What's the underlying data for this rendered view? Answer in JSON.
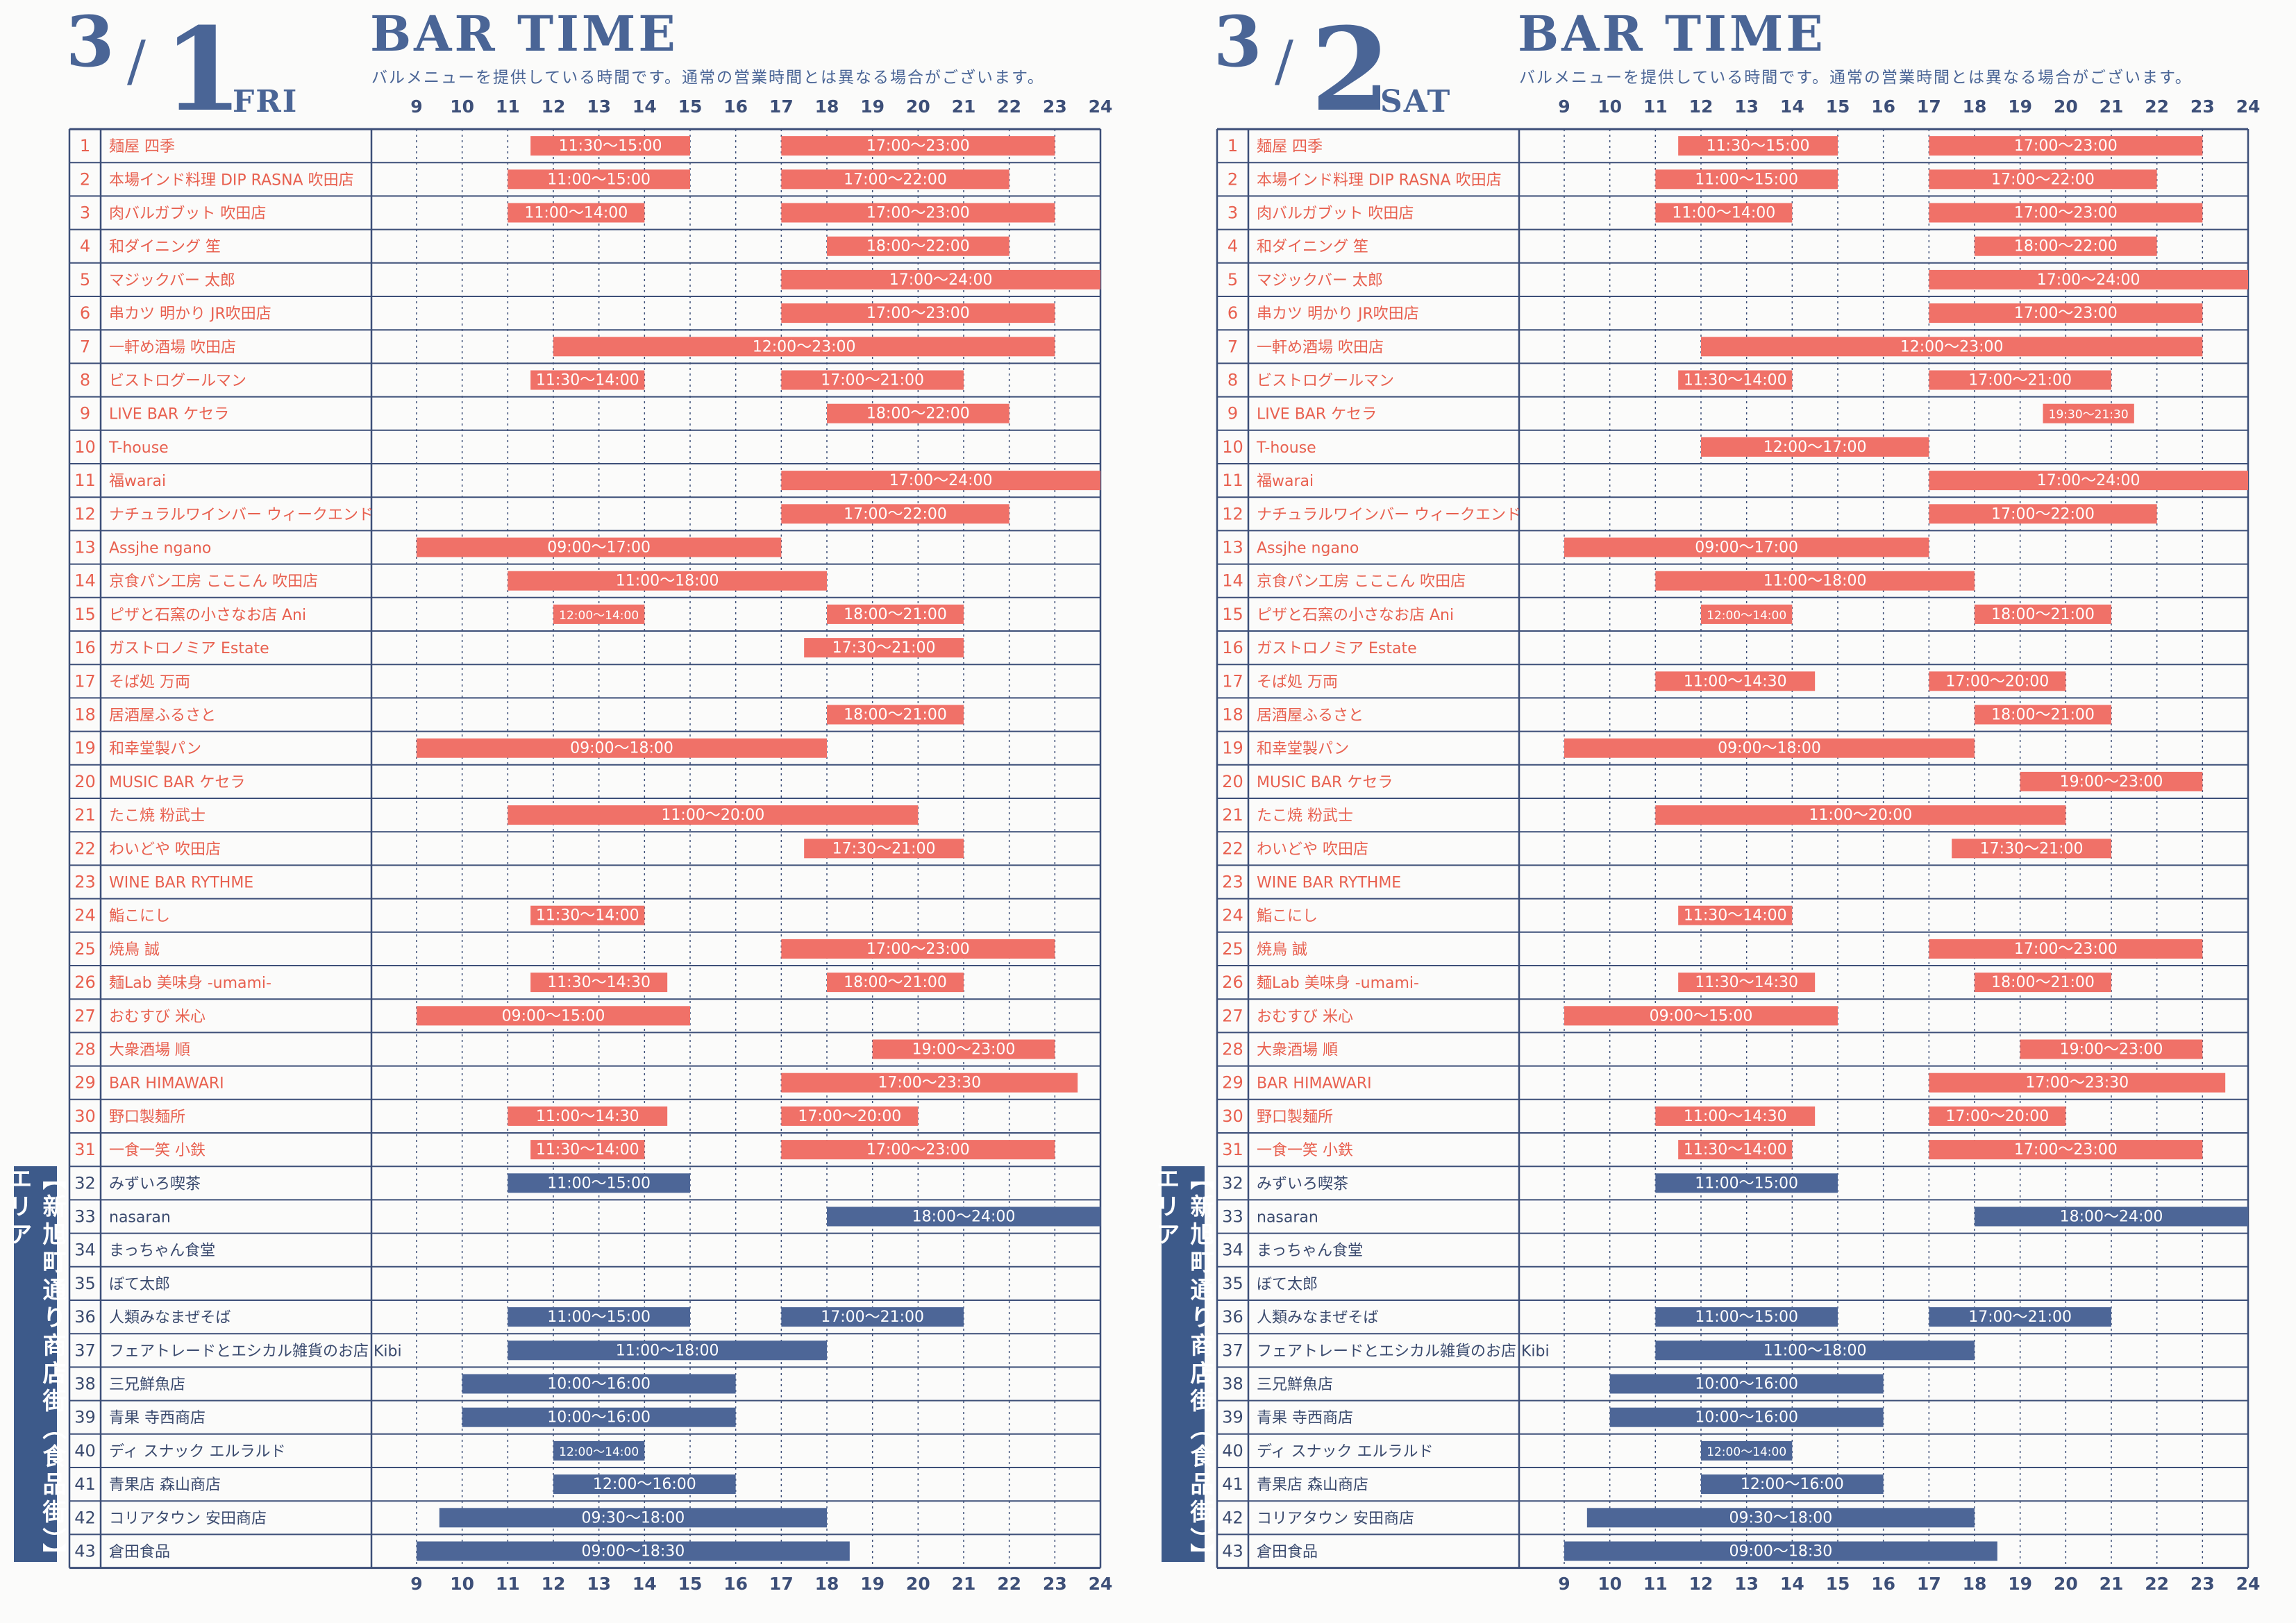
{
  "legend_title": "BAR TIME",
  "subtitle": "バルメニューを提供している時間です。通常の営業時間とは異なる場合がございます。",
  "side_tab": "【新旭町通り商店街（食品街）】エリア",
  "colors": {
    "red": "#f07168",
    "blue": "#4d6697",
    "grid": "#3d4f78"
  },
  "chart_data": {
    "type": "gantt",
    "hours": [
      "9",
      "10",
      "11",
      "12",
      "13",
      "14",
      "15",
      "16",
      "17",
      "18",
      "19",
      "20",
      "21",
      "22",
      "23",
      "24"
    ],
    "xlim": [
      9,
      24
    ],
    "rows": [
      {
        "no": "1",
        "name": "麺屋 四季"
      },
      {
        "no": "2",
        "name": "本場インド料理 DIP RASNA 吹田店"
      },
      {
        "no": "3",
        "name": "肉バルガブット 吹田店"
      },
      {
        "no": "4",
        "name": "和ダイニング 笙"
      },
      {
        "no": "5",
        "name": "マジックバー 太郎"
      },
      {
        "no": "6",
        "name": "串カツ 明かり JR吹田店"
      },
      {
        "no": "7",
        "name": "一軒め酒場 吹田店"
      },
      {
        "no": "8",
        "name": "ビストログールマン"
      },
      {
        "no": "9",
        "name": "LIVE BAR ケセラ"
      },
      {
        "no": "10",
        "name": "T-house"
      },
      {
        "no": "11",
        "name": "福warai"
      },
      {
        "no": "12",
        "name": "ナチュラルワインバー ウィークエンド"
      },
      {
        "no": "13",
        "name": "Assjhe ngano"
      },
      {
        "no": "14",
        "name": "京食パン工房 こここん 吹田店"
      },
      {
        "no": "15",
        "name": "ピザと石窯の小さなお店 Ani"
      },
      {
        "no": "16",
        "name": "ガストロノミア Estate"
      },
      {
        "no": "17",
        "name": "そば処 万両"
      },
      {
        "no": "18",
        "name": "居酒屋ふるさと"
      },
      {
        "no": "19",
        "name": "和幸堂製パン"
      },
      {
        "no": "20",
        "name": "MUSIC BAR ケセラ"
      },
      {
        "no": "21",
        "name": "たこ焼 粉武士"
      },
      {
        "no": "22",
        "name": "わいどや 吹田店"
      },
      {
        "no": "23",
        "name": "WINE BAR RYTHME"
      },
      {
        "no": "24",
        "name": "鮨こにし"
      },
      {
        "no": "25",
        "name": "焼鳥 誠"
      },
      {
        "no": "26",
        "name": "麺Lab 美味身 -umami-"
      },
      {
        "no": "27",
        "name": "おむすび 米心"
      },
      {
        "no": "28",
        "name": "大衆酒場 順"
      },
      {
        "no": "29",
        "name": "BAR HIMAWARI"
      },
      {
        "no": "30",
        "name": "野口製麺所"
      },
      {
        "no": "31",
        "name": "一食一笑 小鉄"
      },
      {
        "no": "32",
        "name": "みずいろ喫茶"
      },
      {
        "no": "33",
        "name": "nasaran"
      },
      {
        "no": "34",
        "name": "まっちゃん食堂"
      },
      {
        "no": "35",
        "name": "ぼて太郎"
      },
      {
        "no": "36",
        "name": "人類みなまぜそば"
      },
      {
        "no": "37",
        "name": "フェアトレードとエシカル雑貨のお店 Kibi"
      },
      {
        "no": "38",
        "name": "三兄鮮魚店"
      },
      {
        "no": "39",
        "name": "青果 寺西商店"
      },
      {
        "no": "40",
        "name": "ディ スナック エルラルド"
      },
      {
        "no": "41",
        "name": "青果店 森山商店"
      },
      {
        "no": "42",
        "name": "コリアタウン 安田商店"
      },
      {
        "no": "43",
        "name": "倉田食品"
      }
    ],
    "days": [
      {
        "month": "3",
        "slash": "/",
        "day": "1",
        "weekday": "FRI",
        "bars": [
          {
            "r": 1,
            "s": 11.5,
            "e": 15,
            "label": "11:30～15:00"
          },
          {
            "r": 1,
            "s": 17,
            "e": 23,
            "label": "17:00～23:00"
          },
          {
            "r": 2,
            "s": 11,
            "e": 15,
            "label": "11:00～15:00"
          },
          {
            "r": 2,
            "s": 17,
            "e": 22,
            "label": "17:00～22:00"
          },
          {
            "r": 3,
            "s": 11,
            "e": 14,
            "label": "11:00～14:00"
          },
          {
            "r": 3,
            "s": 17,
            "e": 23,
            "label": "17:00～23:00"
          },
          {
            "r": 4,
            "s": 18,
            "e": 22,
            "label": "18:00～22:00"
          },
          {
            "r": 5,
            "s": 17,
            "e": 24,
            "label": "17:00～24:00"
          },
          {
            "r": 6,
            "s": 17,
            "e": 23,
            "label": "17:00～23:00"
          },
          {
            "r": 7,
            "s": 12,
            "e": 23,
            "label": "12:00～23:00"
          },
          {
            "r": 8,
            "s": 11.5,
            "e": 14,
            "label": "11:30～14:00"
          },
          {
            "r": 8,
            "s": 17,
            "e": 21,
            "label": "17:00～21:00"
          },
          {
            "r": 9,
            "s": 18,
            "e": 22,
            "label": "18:00～22:00"
          },
          {
            "r": 11,
            "s": 17,
            "e": 24,
            "label": "17:00～24:00"
          },
          {
            "r": 12,
            "s": 17,
            "e": 22,
            "label": "17:00～22:00"
          },
          {
            "r": 13,
            "s": 9,
            "e": 17,
            "label": "09:00～17:00"
          },
          {
            "r": 14,
            "s": 11,
            "e": 18,
            "label": "11:00～18:00"
          },
          {
            "r": 15,
            "s": 12,
            "e": 14,
            "label": "12:00～14:00",
            "small": true
          },
          {
            "r": 15,
            "s": 18,
            "e": 21,
            "label": "18:00～21:00"
          },
          {
            "r": 16,
            "s": 17.5,
            "e": 21,
            "label": "17:30～21:00"
          },
          {
            "r": 18,
            "s": 18,
            "e": 21,
            "label": "18:00～21:00"
          },
          {
            "r": 19,
            "s": 9,
            "e": 18,
            "label": "09:00～18:00"
          },
          {
            "r": 21,
            "s": 11,
            "e": 20,
            "label": "11:00～20:00"
          },
          {
            "r": 22,
            "s": 17.5,
            "e": 21,
            "label": "17:30～21:00"
          },
          {
            "r": 24,
            "s": 11.5,
            "e": 14,
            "label": "11:30～14:00"
          },
          {
            "r": 25,
            "s": 17,
            "e": 23,
            "label": "17:00～23:00"
          },
          {
            "r": 26,
            "s": 11.5,
            "e": 14.5,
            "label": "11:30～14:30"
          },
          {
            "r": 26,
            "s": 18,
            "e": 21,
            "label": "18:00～21:00"
          },
          {
            "r": 27,
            "s": 9,
            "e": 15,
            "label": "09:00～15:00"
          },
          {
            "r": 28,
            "s": 19,
            "e": 23,
            "label": "19:00～23:00"
          },
          {
            "r": 29,
            "s": 17,
            "e": 23.5,
            "label": "17:00～23:30"
          },
          {
            "r": 30,
            "s": 11,
            "e": 14.5,
            "label": "11:00～14:30"
          },
          {
            "r": 30,
            "s": 17,
            "e": 20,
            "label": "17:00～20:00"
          },
          {
            "r": 31,
            "s": 11.5,
            "e": 14,
            "label": "11:30～14:00"
          },
          {
            "r": 31,
            "s": 17,
            "e": 23,
            "label": "17:00～23:00"
          },
          {
            "r": 32,
            "s": 11,
            "e": 15,
            "label": "11:00～15:00"
          },
          {
            "r": 33,
            "s": 18,
            "e": 24,
            "label": "18:00～24:00"
          },
          {
            "r": 36,
            "s": 11,
            "e": 15,
            "label": "11:00～15:00"
          },
          {
            "r": 36,
            "s": 17,
            "e": 21,
            "label": "17:00～21:00"
          },
          {
            "r": 37,
            "s": 11,
            "e": 18,
            "label": "11:00～18:00"
          },
          {
            "r": 38,
            "s": 10,
            "e": 16,
            "label": "10:00～16:00"
          },
          {
            "r": 39,
            "s": 10,
            "e": 16,
            "label": "10:00～16:00"
          },
          {
            "r": 40,
            "s": 12,
            "e": 14,
            "label": "12:00～14:00",
            "small": true
          },
          {
            "r": 41,
            "s": 12,
            "e": 16,
            "label": "12:00～16:00"
          },
          {
            "r": 42,
            "s": 9.5,
            "e": 18,
            "label": "09:30～18:00"
          },
          {
            "r": 43,
            "s": 9,
            "e": 18.5,
            "label": "09:00～18:30"
          }
        ]
      },
      {
        "month": "3",
        "slash": "/",
        "day": "2",
        "weekday": "SAT",
        "bars": [
          {
            "r": 1,
            "s": 11.5,
            "e": 15,
            "label": "11:30～15:00"
          },
          {
            "r": 1,
            "s": 17,
            "e": 23,
            "label": "17:00～23:00"
          },
          {
            "r": 2,
            "s": 11,
            "e": 15,
            "label": "11:00～15:00"
          },
          {
            "r": 2,
            "s": 17,
            "e": 22,
            "label": "17:00～22:00"
          },
          {
            "r": 3,
            "s": 11,
            "e": 14,
            "label": "11:00～14:00"
          },
          {
            "r": 3,
            "s": 17,
            "e": 23,
            "label": "17:00～23:00"
          },
          {
            "r": 4,
            "s": 18,
            "e": 22,
            "label": "18:00～22:00"
          },
          {
            "r": 5,
            "s": 17,
            "e": 24,
            "label": "17:00～24:00"
          },
          {
            "r": 6,
            "s": 17,
            "e": 23,
            "label": "17:00～23:00"
          },
          {
            "r": 7,
            "s": 12,
            "e": 23,
            "label": "12:00～23:00"
          },
          {
            "r": 8,
            "s": 11.5,
            "e": 14,
            "label": "11:30～14:00"
          },
          {
            "r": 8,
            "s": 17,
            "e": 21,
            "label": "17:00～21:00"
          },
          {
            "r": 9,
            "s": 19.5,
            "e": 21.5,
            "label": "19:30～21:30",
            "small": true
          },
          {
            "r": 10,
            "s": 12,
            "e": 17,
            "label": "12:00～17:00"
          },
          {
            "r": 11,
            "s": 17,
            "e": 24,
            "label": "17:00～24:00"
          },
          {
            "r": 12,
            "s": 17,
            "e": 22,
            "label": "17:00～22:00"
          },
          {
            "r": 13,
            "s": 9,
            "e": 17,
            "label": "09:00～17:00"
          },
          {
            "r": 14,
            "s": 11,
            "e": 18,
            "label": "11:00～18:00"
          },
          {
            "r": 15,
            "s": 12,
            "e": 14,
            "label": "12:00～14:00",
            "small": true
          },
          {
            "r": 15,
            "s": 18,
            "e": 21,
            "label": "18:00～21:00"
          },
          {
            "r": 17,
            "s": 11,
            "e": 14.5,
            "label": "11:00～14:30"
          },
          {
            "r": 17,
            "s": 17,
            "e": 20,
            "label": "17:00～20:00"
          },
          {
            "r": 18,
            "s": 18,
            "e": 21,
            "label": "18:00～21:00"
          },
          {
            "r": 19,
            "s": 9,
            "e": 18,
            "label": "09:00～18:00"
          },
          {
            "r": 20,
            "s": 19,
            "e": 23,
            "label": "19:00～23:00"
          },
          {
            "r": 21,
            "s": 11,
            "e": 20,
            "label": "11:00～20:00"
          },
          {
            "r": 22,
            "s": 17.5,
            "e": 21,
            "label": "17:30～21:00"
          },
          {
            "r": 24,
            "s": 11.5,
            "e": 14,
            "label": "11:30～14:00"
          },
          {
            "r": 25,
            "s": 17,
            "e": 23,
            "label": "17:00～23:00"
          },
          {
            "r": 26,
            "s": 11.5,
            "e": 14.5,
            "label": "11:30～14:30"
          },
          {
            "r": 26,
            "s": 18,
            "e": 21,
            "label": "18:00～21:00"
          },
          {
            "r": 27,
            "s": 9,
            "e": 15,
            "label": "09:00～15:00"
          },
          {
            "r": 28,
            "s": 19,
            "e": 23,
            "label": "19:00～23:00"
          },
          {
            "r": 29,
            "s": 17,
            "e": 23.5,
            "label": "17:00～23:30"
          },
          {
            "r": 30,
            "s": 11,
            "e": 14.5,
            "label": "11:00～14:30"
          },
          {
            "r": 30,
            "s": 17,
            "e": 20,
            "label": "17:00～20:00"
          },
          {
            "r": 31,
            "s": 11.5,
            "e": 14,
            "label": "11:30～14:00"
          },
          {
            "r": 31,
            "s": 17,
            "e": 23,
            "label": "17:00～23:00"
          },
          {
            "r": 32,
            "s": 11,
            "e": 15,
            "label": "11:00～15:00"
          },
          {
            "r": 33,
            "s": 18,
            "e": 24,
            "label": "18:00～24:00"
          },
          {
            "r": 36,
            "s": 11,
            "e": 15,
            "label": "11:00～15:00"
          },
          {
            "r": 36,
            "s": 17,
            "e": 21,
            "label": "17:00～21:00"
          },
          {
            "r": 37,
            "s": 11,
            "e": 18,
            "label": "11:00～18:00"
          },
          {
            "r": 38,
            "s": 10,
            "e": 16,
            "label": "10:00～16:00"
          },
          {
            "r": 39,
            "s": 10,
            "e": 16,
            "label": "10:00～16:00"
          },
          {
            "r": 40,
            "s": 12,
            "e": 14,
            "label": "12:00～14:00",
            "small": true
          },
          {
            "r": 41,
            "s": 12,
            "e": 16,
            "label": "12:00～16:00"
          },
          {
            "r": 42,
            "s": 9.5,
            "e": 18,
            "label": "09:30～18:00"
          },
          {
            "r": 43,
            "s": 9,
            "e": 18.5,
            "label": "09:00～18:30"
          }
        ]
      }
    ]
  }
}
